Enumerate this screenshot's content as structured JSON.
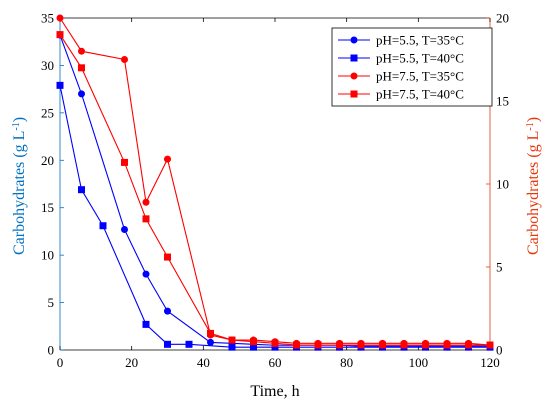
{
  "chart_data": {
    "type": "line",
    "xlabel": "Time, h",
    "ylabel_left": "Carbohydrates (g L",
    "ylabel_right": "Carbohydrates (g L",
    "ylabel_unit_exponent": "-1",
    "ylabel_close": ")",
    "xlim": [
      0,
      120
    ],
    "ylim_left": [
      0,
      35
    ],
    "ylim_right": [
      0,
      20
    ],
    "xticks": [
      0,
      20,
      40,
      60,
      80,
      100,
      120
    ],
    "yticks_left": [
      0,
      5,
      10,
      15,
      20,
      25,
      30,
      35
    ],
    "yticks_right": [
      0,
      5,
      10,
      15,
      20
    ],
    "grid": false,
    "legend_position": "top-right",
    "left_axis_color": "#0070c0",
    "right_axis_color": "#e8380d",
    "series": [
      {
        "name": "pH=5.5, T=35°C",
        "axis": "left",
        "color": "#0000ff",
        "marker": "circle",
        "x": [
          0,
          6,
          18,
          24,
          30,
          42,
          48,
          54,
          60,
          66,
          72,
          78,
          84,
          90,
          96,
          102,
          108,
          114,
          120
        ],
        "y": [
          33.2,
          27.0,
          12.7,
          8.0,
          4.1,
          0.8,
          0.7,
          0.6,
          0.5,
          0.5,
          0.5,
          0.5,
          0.4,
          0.4,
          0.4,
          0.4,
          0.4,
          0.4,
          0.4
        ]
      },
      {
        "name": "pH=5.5, T=40°C",
        "axis": "left",
        "color": "#0000ff",
        "marker": "square",
        "x": [
          0,
          6,
          12,
          24,
          30,
          36,
          48,
          54,
          60,
          66,
          72,
          78,
          84,
          90,
          96,
          102,
          108,
          114,
          120
        ],
        "y": [
          27.9,
          16.9,
          13.1,
          2.7,
          0.6,
          0.6,
          0.3,
          0.3,
          0.3,
          0.3,
          0.3,
          0.3,
          0.3,
          0.3,
          0.3,
          0.3,
          0.3,
          0.3,
          0.3
        ]
      },
      {
        "name": "pH=7.5, T=35°C",
        "axis": "right",
        "color": "#ff0000",
        "marker": "circle",
        "x": [
          0,
          6,
          18,
          24,
          30,
          42,
          48,
          54,
          60,
          66,
          72,
          78,
          84,
          90,
          96,
          102,
          108,
          114,
          120
        ],
        "y": [
          20.0,
          18.0,
          17.5,
          8.9,
          11.5,
          0.9,
          0.6,
          0.6,
          0.5,
          0.4,
          0.4,
          0.4,
          0.4,
          0.4,
          0.4,
          0.4,
          0.4,
          0.4,
          0.3
        ]
      },
      {
        "name": "pH=7.5, T=40°C",
        "axis": "right",
        "color": "#ff0000",
        "marker": "square",
        "x": [
          0,
          6,
          18,
          24,
          30,
          42,
          48,
          54,
          60,
          66,
          72,
          78,
          84,
          90,
          96,
          102,
          108,
          114,
          120
        ],
        "y": [
          19.0,
          17.0,
          11.3,
          7.9,
          5.6,
          1.0,
          0.6,
          0.5,
          0.4,
          0.3,
          0.3,
          0.3,
          0.3,
          0.3,
          0.3,
          0.3,
          0.3,
          0.3,
          0.3
        ]
      }
    ]
  }
}
